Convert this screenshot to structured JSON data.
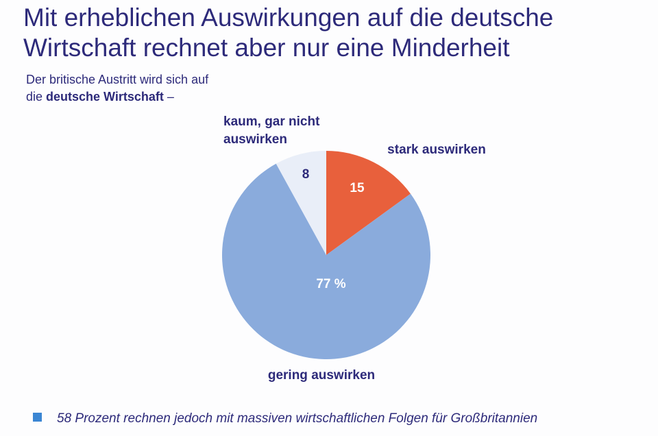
{
  "title_line1": "Mit erheblichen Auswirkungen auf die deutsche",
  "title_line2": "Wirtschaft rechnet aber nur eine Minderheit",
  "subtitle_part1": "Der britische Austritt wird sich auf",
  "subtitle_part2": "die ",
  "subtitle_bold": "deutsche Wirtschaft",
  "subtitle_part3": " –",
  "chart_data": {
    "type": "pie",
    "slices": [
      {
        "label": "stark auswirken",
        "value": 15,
        "value_text": "15",
        "color": "#e8603c",
        "value_color": "#ffffff",
        "label_lines": [
          "stark auswirken"
        ]
      },
      {
        "label": "gering auswirken",
        "value": 77,
        "value_text": "77 %",
        "color": "#8aabdc",
        "value_color": "#ffffff",
        "label_lines": [
          "gering auswirken"
        ]
      },
      {
        "label": "kaum, gar nicht auswirken",
        "value": 8,
        "value_text": "8",
        "color": "#e9eef8",
        "value_color": "#2d2a7a",
        "label_lines": [
          "kaum, gar nicht",
          "auswirken"
        ]
      }
    ]
  },
  "footnote": {
    "text": "58 Prozent rechnen jedoch mit massiven wirtschaftlichen Folgen für Großbritannien",
    "bullet_color": "#3b86d3"
  },
  "colors": {
    "text": "#2d2a7a",
    "background": "#fdfdfe"
  }
}
